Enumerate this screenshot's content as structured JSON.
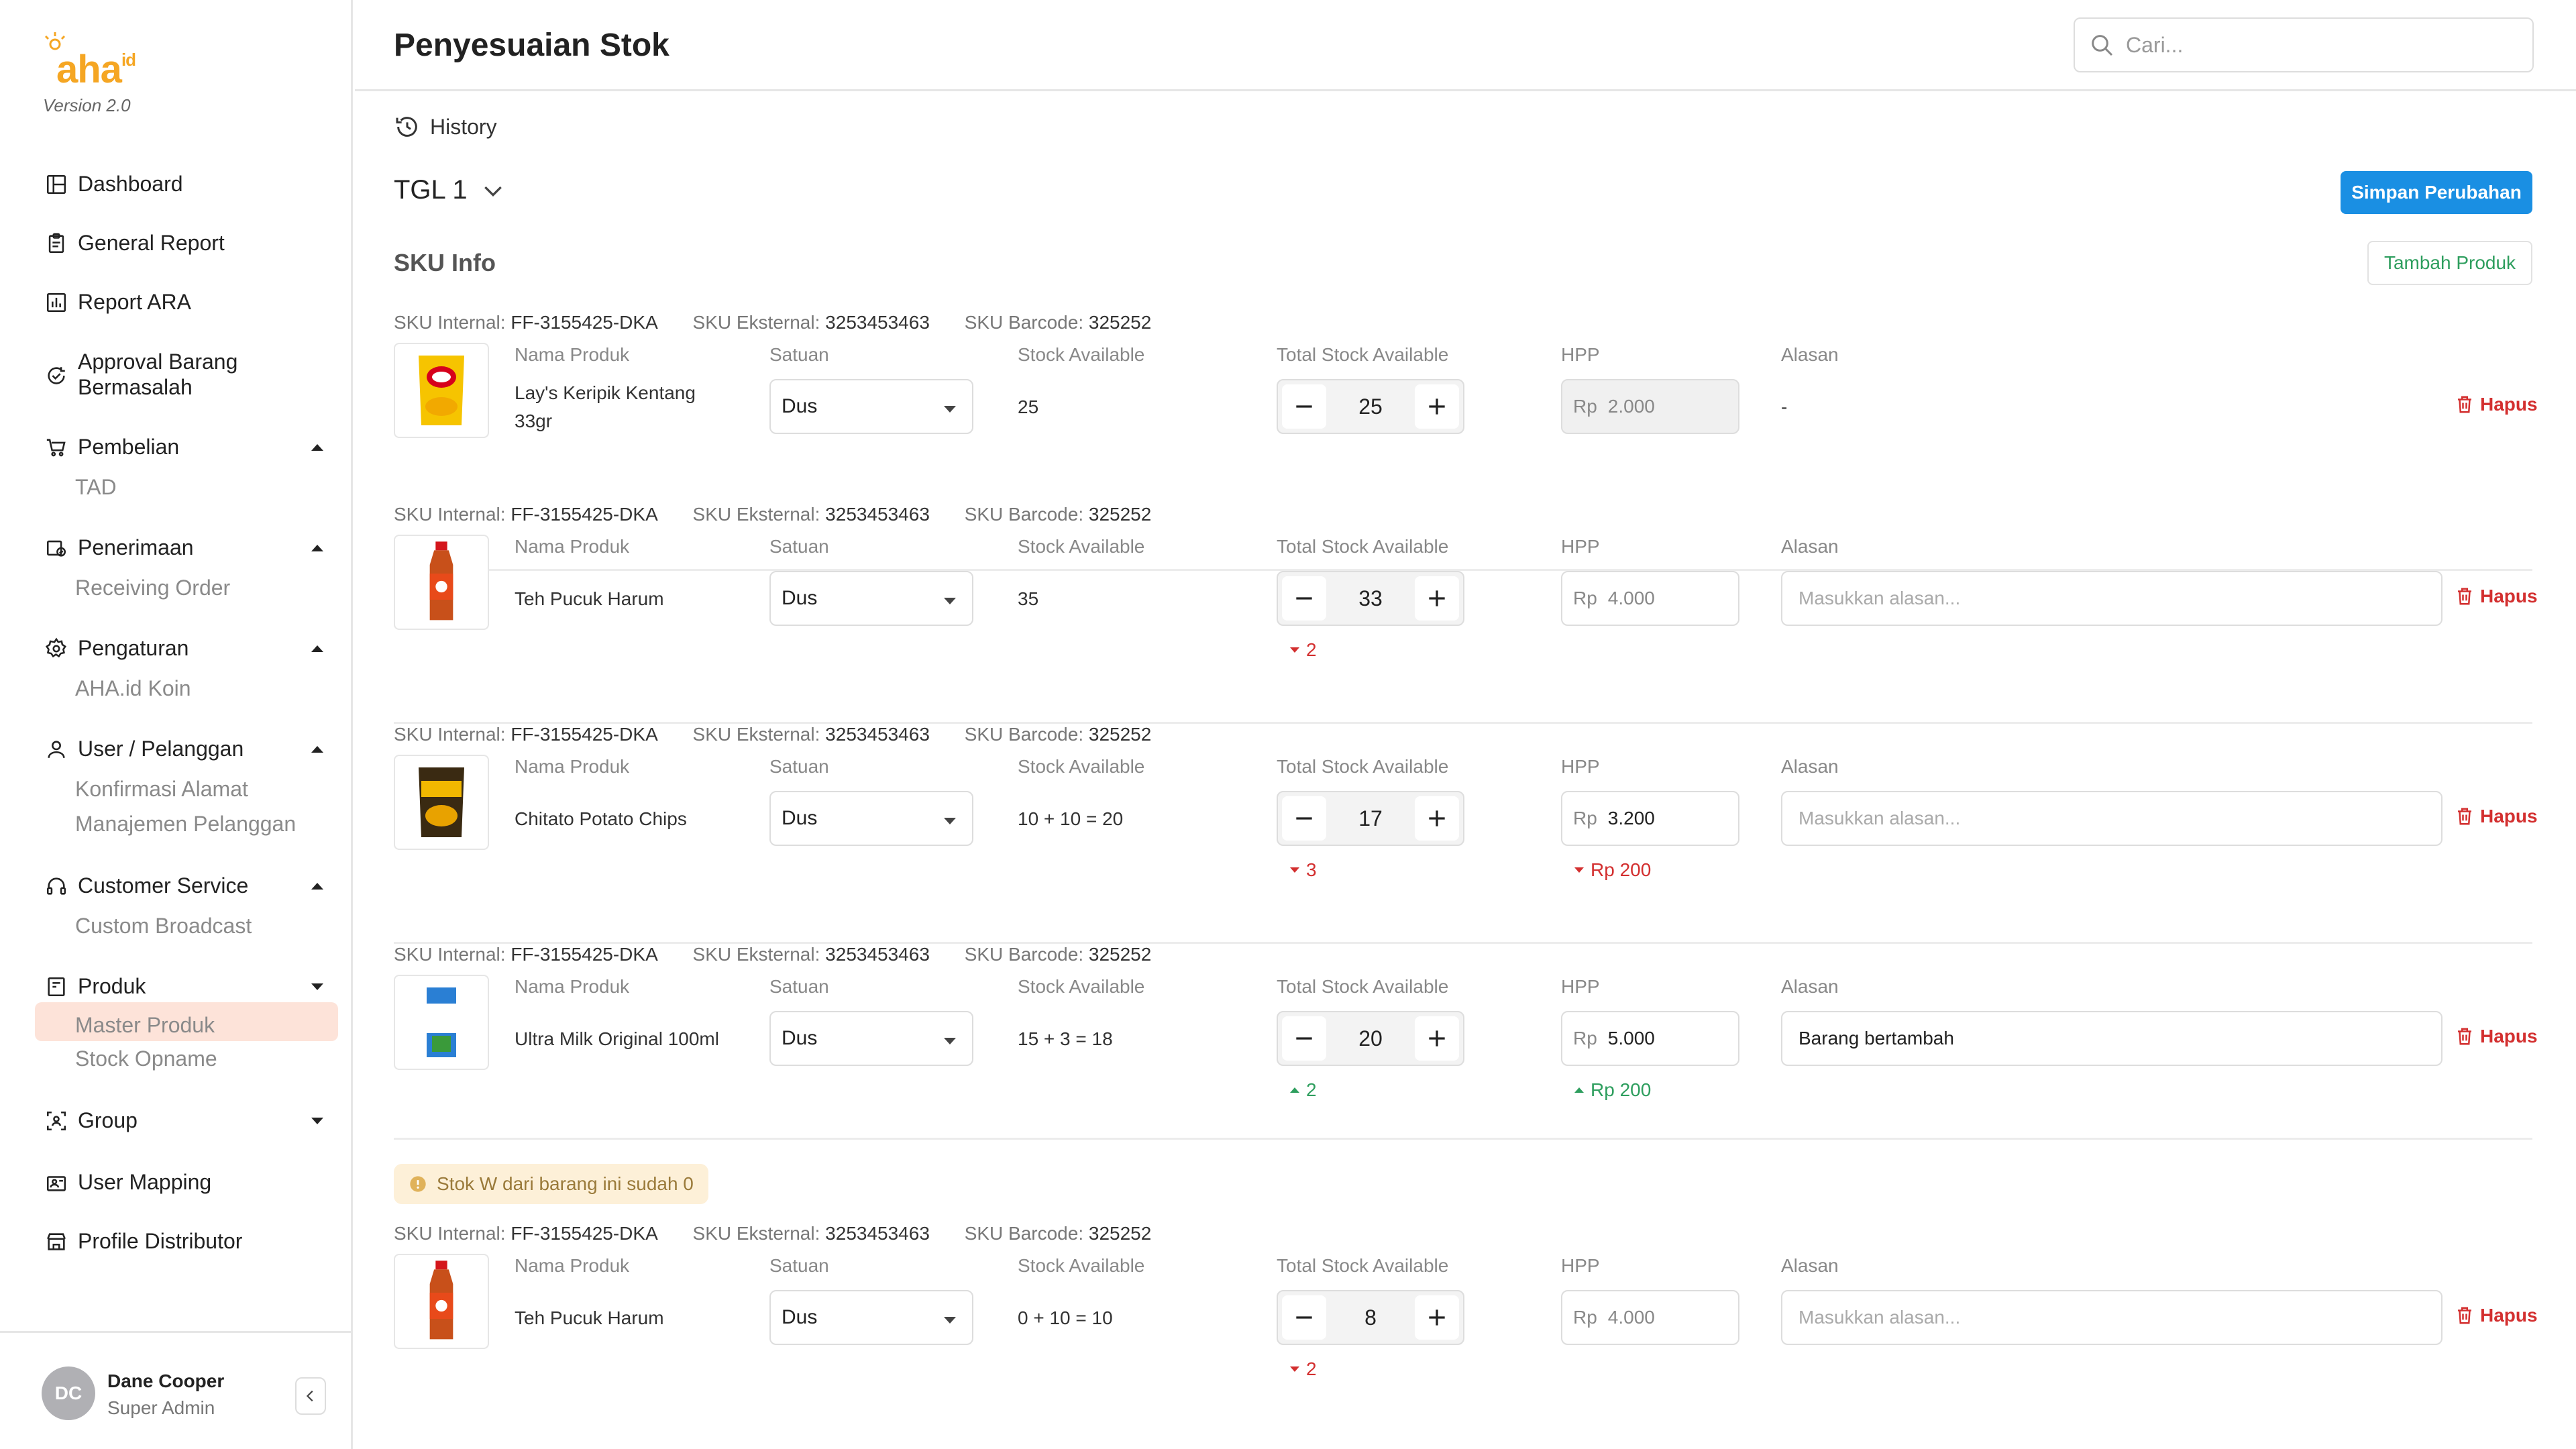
{
  "brand": {
    "logo_text": "aha",
    "logo_sup": "id",
    "version": "Version 2.0"
  },
  "sidebar": {
    "items": [
      {
        "label": "Dashboard",
        "icon": "dashboard-icon"
      },
      {
        "label": "General Report",
        "icon": "clipboard-icon"
      },
      {
        "label": "Report ARA",
        "icon": "bar-chart-icon"
      },
      {
        "label": "Approval Barang Bermasalah",
        "icon": "refresh-check-icon"
      },
      {
        "label": "Pembelian",
        "icon": "cart-icon",
        "children": [
          "TAD"
        ]
      },
      {
        "label": "Penerimaan",
        "icon": "receive-icon",
        "children": [
          "Receiving Order"
        ]
      },
      {
        "label": "Pengaturan",
        "icon": "gear-icon",
        "children": [
          "AHA.id Koin"
        ]
      },
      {
        "label": "User / Pelanggan",
        "icon": "user-icon",
        "children": [
          "Konfirmasi Alamat",
          "Manajemen Pelanggan"
        ]
      },
      {
        "label": "Customer Service",
        "icon": "headset-icon",
        "children": [
          "Custom Broadcast"
        ]
      },
      {
        "label": "Produk",
        "icon": "product-icon",
        "children": [
          "Master Produk",
          "Stock Opname"
        ]
      },
      {
        "label": "Group",
        "icon": "group-icon"
      },
      {
        "label": "User Mapping",
        "icon": "map-icon"
      },
      {
        "label": "Profile Distributor",
        "icon": "store-icon"
      }
    ],
    "active_sub": "Master Produk"
  },
  "user": {
    "initials": "DC",
    "name": "Dane Cooper",
    "role": "Super Admin"
  },
  "header": {
    "title": "Penyesuaian Stok",
    "search_placeholder": "Cari..."
  },
  "main": {
    "history_label": "History",
    "date_select": "TGL 1",
    "save_button": "Simpan Perubahan",
    "section_title": "SKU Info",
    "add_button": "Tambah Produk",
    "labels": {
      "sku_internal": "SKU Internal:",
      "sku_eksternal": "SKU Eksternal:",
      "sku_barcode": "SKU Barcode:",
      "nama_produk": "Nama Produk",
      "satuan": "Satuan",
      "stock_available": "Stock Available",
      "total_stock": "Total Stock Available",
      "hpp": "HPP",
      "alasan": "Alasan",
      "rp": "Rp",
      "hapus": "Hapus",
      "alasan_placeholder": "Masukkan alasan..."
    },
    "warning": "Stok W dari barang ini sudah 0",
    "rows": [
      {
        "sku_internal": "FF-3155425-DKA",
        "sku_eksternal": "3253453463",
        "sku_barcode": "325252",
        "name": "Lay's Keripik Kentang 33gr",
        "satuan": "Dus",
        "stock_available": "25",
        "total": "25",
        "hpp": "2.000",
        "alasan": "-",
        "stock_delta": "",
        "hpp_delta": ""
      },
      {
        "sku_internal": "FF-3155425-DKA",
        "sku_eksternal": "3253453463",
        "sku_barcode": "325252",
        "name": "Teh Pucuk Harum",
        "satuan": "Dus",
        "stock_available": "35",
        "total": "33",
        "hpp": "4.000",
        "alasan": "",
        "stock_delta": "2",
        "hpp_delta": ""
      },
      {
        "sku_internal": "FF-3155425-DKA",
        "sku_eksternal": "3253453463",
        "sku_barcode": "325252",
        "name": "Chitato Potato Chips",
        "satuan": "Dus",
        "stock_available": "10 + 10 = 20",
        "total": "17",
        "hpp": "3.200",
        "alasan": "",
        "stock_delta": "3",
        "hpp_delta": "Rp 200"
      },
      {
        "sku_internal": "FF-3155425-DKA",
        "sku_eksternal": "3253453463",
        "sku_barcode": "325252",
        "name": "Ultra Milk Original 100ml",
        "satuan": "Dus",
        "stock_available": "15 + 3 = 18",
        "total": "20",
        "hpp": "5.000",
        "alasan": "Barang bertambah",
        "stock_delta": "2",
        "hpp_delta": "Rp 200"
      },
      {
        "sku_internal": "FF-3155425-DKA",
        "sku_eksternal": "3253453463",
        "sku_barcode": "325252",
        "name": "Teh Pucuk Harum",
        "satuan": "Dus",
        "stock_available": "0 + 10 = 10",
        "total": "8",
        "hpp": "4.000",
        "alasan": "",
        "stock_delta": "2",
        "hpp_delta": ""
      }
    ]
  },
  "colors": {
    "accent": "#1a8fe3",
    "brand": "#f5a623",
    "danger": "#d32f2f",
    "success": "#2e9e5e",
    "active_bg": "#fde3d9"
  }
}
